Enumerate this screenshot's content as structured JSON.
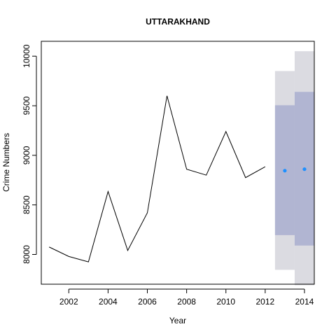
{
  "chart_data": {
    "type": "line",
    "title": "UTTARAKHAND",
    "xlabel": "Year",
    "ylabel": "Crime Numbers",
    "xlim": [
      2000.6,
      2014.5
    ],
    "ylim": [
      7700,
      10150
    ],
    "x_ticks": [
      2002,
      2004,
      2006,
      2008,
      2010,
      2012,
      2014
    ],
    "y_ticks": [
      8000,
      8500,
      9000,
      9500,
      10000
    ],
    "grid": false,
    "series": [
      {
        "type": "line",
        "x": [
          2001,
          2002,
          2003,
          2004,
          2005,
          2006,
          2007,
          2008,
          2009,
          2010,
          2011,
          2012
        ],
        "y": [
          8075,
          7980,
          7925,
          8635,
          8040,
          8420,
          9600,
          8860,
          8800,
          9240,
          8775,
          8885
        ]
      },
      {
        "type": "point_forecast",
        "x": [
          2013,
          2014
        ],
        "y": [
          8845,
          8860
        ]
      }
    ],
    "intervals": {
      "x": [
        2013,
        2014
      ],
      "lower_95": [
        7845,
        7690
      ],
      "upper_95": [
        9850,
        10050
      ],
      "lower_80": [
        8195,
        8090
      ],
      "upper_80": [
        9505,
        9640
      ]
    },
    "colors": {
      "line": "#000000",
      "point": "#1e90ff",
      "band_95": "#dbdbe1",
      "band_80": "#b1b5d2"
    }
  }
}
